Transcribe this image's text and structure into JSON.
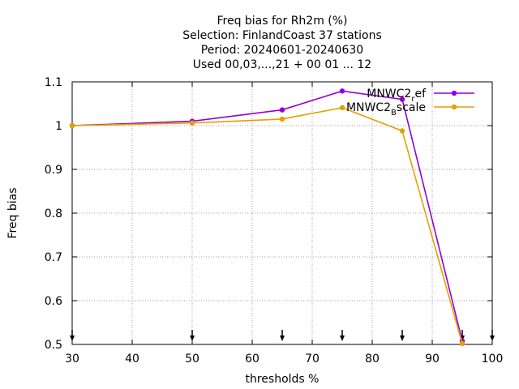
{
  "chart_data": {
    "type": "line",
    "title_lines": [
      "Freq bias  for Rh2m (%)",
      "Selection: FinlandCoast      37 stations",
      "Period: 20240601-20240630",
      "Used 00,03,...,21 + 00 01 ... 12"
    ],
    "xlabel": "thresholds %",
    "ylabel": "Freq bias",
    "xlim": [
      30,
      100
    ],
    "ylim": [
      0.5,
      1.1
    ],
    "xticks": [
      30,
      40,
      50,
      60,
      70,
      80,
      90,
      100
    ],
    "yticks": [
      0.5,
      0.6,
      0.7,
      0.8,
      0.9,
      1,
      1.1
    ],
    "xtick_labels": [
      "30",
      "40",
      "50",
      "60",
      "70",
      "80",
      "90",
      "100"
    ],
    "ytick_labels": [
      "0.5",
      "0.6",
      "0.7",
      "0.8",
      "0.9",
      "1",
      "1.1"
    ],
    "grid": true,
    "legend_position": "top-right",
    "threshold_arrows_x": [
      30,
      50,
      65,
      75,
      85,
      95,
      100
    ],
    "series": [
      {
        "name": "MNWC2_ref",
        "legend_main": "MNWC2",
        "legend_sub": "r",
        "legend_tail": "ef",
        "color": "#9400d3",
        "x": [
          30,
          50,
          65,
          75,
          85,
          95
        ],
        "y": [
          1.0,
          1.01,
          1.036,
          1.079,
          1.06,
          0.508
        ]
      },
      {
        "name": "MNWC2_Bscale",
        "legend_main": "MNWC2",
        "legend_sub": "B",
        "legend_tail": "scale",
        "color": "#e69f00",
        "x": [
          30,
          50,
          65,
          75,
          85,
          95
        ],
        "y": [
          1.0,
          1.006,
          1.015,
          1.041,
          0.988,
          0.502
        ]
      }
    ]
  }
}
